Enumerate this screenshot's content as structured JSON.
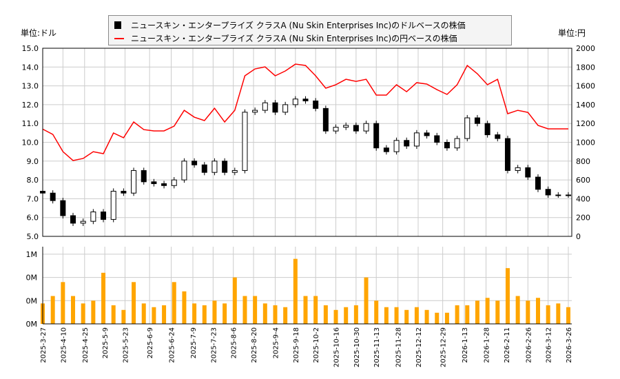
{
  "legend": {
    "usd_series": "ニュースキン・エンタープライズ クラスA (Nu Skin Enterprises Inc)のドルベースの株価",
    "jpy_series": "ニュースキン・エンタープライズ クラスA (Nu Skin Enterprises Inc)の円ベースの株価"
  },
  "units": {
    "left": "単位:ドル",
    "right": "単位:円"
  },
  "colors": {
    "candle_up": "#ffffff",
    "candle_down": "#000000",
    "jpy_line": "#ff0000",
    "volume": "#ffa500",
    "grid": "#cccccc"
  },
  "chart_data": [
    {
      "type": "candlestick+line",
      "left_axis": {
        "label": "単位:ドル",
        "range": [
          5.0,
          15.0
        ],
        "ticks": [
          "15.0",
          "14.0",
          "13.0",
          "12.0",
          "11.0",
          "10.0",
          "9.0",
          "8.0",
          "7.0",
          "6.0",
          "5.0"
        ]
      },
      "right_axis": {
        "label": "単位:円",
        "range": [
          0,
          2000
        ],
        "ticks": [
          "2000",
          "1800",
          "1600",
          "1400",
          "1200",
          "1000",
          "800",
          "600",
          "400",
          "200",
          "0"
        ]
      },
      "x_ticks": [
        "2025-3-27",
        "2025-4-10",
        "2025-4-25",
        "2025-5-9",
        "2025-5-23",
        "2025-6-9",
        "2025-6-24",
        "2025-7-9",
        "2025-7-23",
        "2025-8-6",
        "2025-8-20",
        "2025-9-4",
        "2025-9-18",
        "2025-10-2",
        "2025-10-16",
        "2025-10-30",
        "2025-11-13",
        "2025-11-28",
        "2025-12-12",
        "2025-12-29",
        "2026-1-13",
        "2026-1-28",
        "2026-2-11",
        "2026-2-26",
        "2026-3-12",
        "2026-3-26"
      ],
      "grid": true,
      "dates": [
        "2025-03-27",
        "2025-04-03",
        "2025-04-10",
        "2025-04-17",
        "2025-04-24",
        "2025-05-01",
        "2025-05-08",
        "2025-05-15",
        "2025-05-22",
        "2025-05-29",
        "2025-06-05",
        "2025-06-12",
        "2025-06-19",
        "2025-06-26",
        "2025-07-03",
        "2025-07-10",
        "2025-07-17",
        "2025-07-24",
        "2025-07-31",
        "2025-08-07",
        "2025-08-14",
        "2025-08-21",
        "2025-08-28",
        "2025-09-04",
        "2025-09-11",
        "2025-09-18",
        "2025-09-25",
        "2025-10-02",
        "2025-10-09",
        "2025-10-16",
        "2025-10-23",
        "2025-10-30",
        "2025-11-06",
        "2025-11-13",
        "2025-11-20",
        "2025-11-27",
        "2025-12-04",
        "2025-12-11",
        "2025-12-18",
        "2025-12-25",
        "2026-01-01",
        "2026-01-08",
        "2026-01-15",
        "2026-01-22",
        "2026-01-29",
        "2026-02-05",
        "2026-02-12",
        "2026-02-19",
        "2026-02-26",
        "2026-03-05",
        "2026-03-12",
        "2026-03-19",
        "2026-03-26"
      ],
      "series": [
        {
          "name": "ニュースキン・エンタープライズ クラスA (Nu Skin Enterprises Inc)のドルベースの株価",
          "axis": "left",
          "values": [
            7.3,
            6.9,
            6.1,
            5.7,
            5.8,
            6.3,
            5.9,
            7.4,
            7.3,
            8.5,
            7.9,
            7.8,
            7.7,
            8.0,
            9.0,
            8.8,
            8.4,
            9.0,
            8.4,
            8.5,
            11.6,
            11.7,
            12.1,
            11.6,
            12.0,
            12.3,
            12.2,
            11.8,
            10.6,
            10.8,
            10.9,
            10.6,
            11.0,
            9.7,
            9.5,
            10.1,
            9.8,
            10.5,
            10.35,
            10.0,
            9.7,
            10.2,
            11.3,
            11.0,
            10.4,
            10.2,
            8.5,
            8.65,
            8.15,
            7.5,
            7.2,
            7.2,
            7.2
          ]
        },
        {
          "name": "ニュースキン・エンタープライズ クラスA (Nu Skin Enterprises Inc)の円ベースの株価",
          "axis": "right",
          "values": [
            1140,
            1084,
            901,
            806,
            828,
            900,
            879,
            1099,
            1048,
            1216,
            1135,
            1121,
            1121,
            1172,
            1340,
            1267,
            1231,
            1362,
            1216,
            1340,
            1707,
            1780,
            1802,
            1707,
            1758,
            1831,
            1817,
            1707,
            1575,
            1612,
            1670,
            1648,
            1670,
            1502,
            1502,
            1612,
            1538,
            1634,
            1619,
            1560,
            1509,
            1612,
            1817,
            1729,
            1612,
            1670,
            1304,
            1340,
            1318,
            1180,
            1143,
            1143,
            1143
          ]
        }
      ]
    },
    {
      "type": "bar",
      "y_ticks": [
        "1M",
        "0M",
        "0M",
        "0M"
      ],
      "y_tick_values": [
        750000,
        500000,
        250000,
        0
      ],
      "dates_ref": "same as price chart",
      "volume": [
        220000,
        300000,
        450000,
        300000,
        220000,
        250000,
        550000,
        200000,
        150000,
        450000,
        220000,
        180000,
        200000,
        450000,
        350000,
        220000,
        200000,
        250000,
        220000,
        500000,
        300000,
        300000,
        220000,
        200000,
        180000,
        700000,
        300000,
        300000,
        200000,
        150000,
        180000,
        200000,
        500000,
        250000,
        180000,
        180000,
        150000,
        180000,
        150000,
        120000,
        120000,
        200000,
        200000,
        250000,
        280000,
        250000,
        600000,
        300000,
        250000,
        280000,
        200000,
        220000,
        180000
      ]
    }
  ]
}
